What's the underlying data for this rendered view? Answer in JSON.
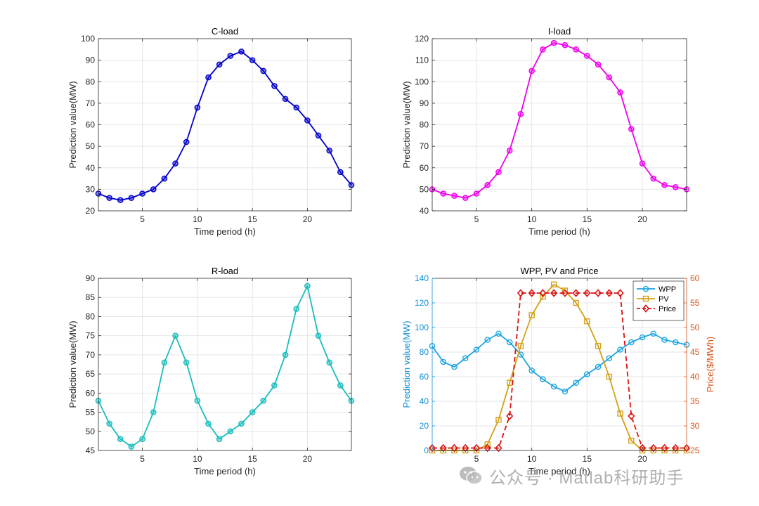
{
  "chart_data": [
    {
      "type": "line",
      "title": "C-load",
      "xlabel": "Time period (h)",
      "ylabel": "Prediction value(MW)",
      "xlim": [
        1,
        24
      ],
      "ylim": [
        20,
        100
      ],
      "xticks": [
        5,
        10,
        15,
        20
      ],
      "yticks": [
        20,
        30,
        40,
        50,
        60,
        70,
        80,
        90,
        100
      ],
      "grid": true,
      "x": [
        1,
        2,
        3,
        4,
        5,
        6,
        7,
        8,
        9,
        10,
        11,
        12,
        13,
        14,
        15,
        16,
        17,
        18,
        19,
        20,
        21,
        22,
        23,
        24
      ],
      "series": [
        {
          "values": [
            28,
            26,
            25,
            26,
            28,
            30,
            35,
            42,
            52,
            68,
            82,
            88,
            92,
            94,
            90,
            85,
            78,
            72,
            68,
            62,
            55,
            48,
            38,
            32
          ],
          "color": "#0000cc",
          "marker": "circle"
        }
      ]
    },
    {
      "type": "line",
      "title": "I-load",
      "xlabel": "Time period (h)",
      "ylabel": "Prediction value(MW)",
      "xlim": [
        1,
        24
      ],
      "ylim": [
        40,
        120
      ],
      "xticks": [
        5,
        10,
        15,
        20
      ],
      "yticks": [
        40,
        50,
        60,
        70,
        80,
        90,
        100,
        110,
        120
      ],
      "grid": true,
      "x": [
        1,
        2,
        3,
        4,
        5,
        6,
        7,
        8,
        9,
        10,
        11,
        12,
        13,
        14,
        15,
        16,
        17,
        18,
        19,
        20,
        21,
        22,
        23,
        24
      ],
      "series": [
        {
          "values": [
            50,
            48,
            47,
            46,
            48,
            52,
            58,
            68,
            85,
            105,
            115,
            118,
            117,
            115,
            112,
            108,
            102,
            95,
            78,
            62,
            55,
            52,
            51,
            50
          ],
          "color": "#ee00ee",
          "marker": "circle"
        }
      ]
    },
    {
      "type": "line",
      "title": "R-load",
      "xlabel": "Time period (h)",
      "ylabel": "Prediction value(MW)",
      "xlim": [
        1,
        24
      ],
      "ylim": [
        45,
        90
      ],
      "xticks": [
        5,
        10,
        15,
        20
      ],
      "yticks": [
        45,
        50,
        55,
        60,
        65,
        70,
        75,
        80,
        85,
        90
      ],
      "grid": true,
      "x": [
        1,
        2,
        3,
        4,
        5,
        6,
        7,
        8,
        9,
        10,
        11,
        12,
        13,
        14,
        15,
        16,
        17,
        18,
        19,
        20,
        21,
        22,
        23,
        24
      ],
      "series": [
        {
          "values": [
            58,
            52,
            48,
            46,
            48,
            55,
            68,
            75,
            68,
            58,
            52,
            48,
            50,
            52,
            55,
            58,
            62,
            70,
            82,
            88,
            75,
            68,
            62,
            58
          ],
          "color": "#1abcbc",
          "marker": "circle"
        }
      ]
    },
    {
      "type": "line",
      "title": "WPP, PV and Price",
      "xlabel": "Time period (h)",
      "ylabel": "Prediction value(MW)",
      "y2label": "Price($/MWh)",
      "xlim": [
        1,
        24
      ],
      "ylim": [
        0,
        140
      ],
      "y2lim": [
        25,
        60
      ],
      "xticks": [
        5,
        10,
        15,
        20
      ],
      "yticks": [
        0,
        20,
        40,
        60,
        80,
        100,
        120,
        140
      ],
      "y2ticks": [
        25,
        30,
        35,
        40,
        45,
        50,
        55,
        60
      ],
      "grid": true,
      "legend_position": "top-right",
      "x": [
        1,
        2,
        3,
        4,
        5,
        6,
        7,
        8,
        9,
        10,
        11,
        12,
        13,
        14,
        15,
        16,
        17,
        18,
        19,
        20,
        21,
        22,
        23,
        24
      ],
      "left_axis_color": "#0f8ed6",
      "right_axis_color": "#d95319",
      "series": [
        {
          "name": "WPP",
          "axis": "left",
          "values": [
            85,
            72,
            68,
            75,
            82,
            90,
            95,
            88,
            78,
            65,
            58,
            52,
            48,
            55,
            62,
            68,
            75,
            82,
            88,
            92,
            95,
            90,
            88,
            86
          ],
          "color": "#1ea5e0",
          "marker": "circle",
          "dash": "solid"
        },
        {
          "name": "PV",
          "axis": "left",
          "values": [
            0,
            0,
            0,
            0,
            0,
            5,
            25,
            55,
            85,
            110,
            125,
            135,
            130,
            120,
            105,
            85,
            60,
            30,
            8,
            0,
            0,
            0,
            0,
            0
          ],
          "color": "#d4a017",
          "marker": "square",
          "dash": "solid"
        },
        {
          "name": "Price",
          "axis": "right",
          "values": [
            25.5,
            25.5,
            25.5,
            25.5,
            25.5,
            25.5,
            25.5,
            32,
            57,
            57,
            57,
            57,
            57,
            57,
            57,
            57,
            57,
            57,
            32,
            25.5,
            25.5,
            25.5,
            25.5,
            25.5
          ],
          "color": "#dd1111",
          "marker": "diamond",
          "dash": "dashed"
        }
      ]
    }
  ],
  "watermark": {
    "text": "公众号 · Matlab科研助手",
    "icon": "wechat-icon"
  }
}
